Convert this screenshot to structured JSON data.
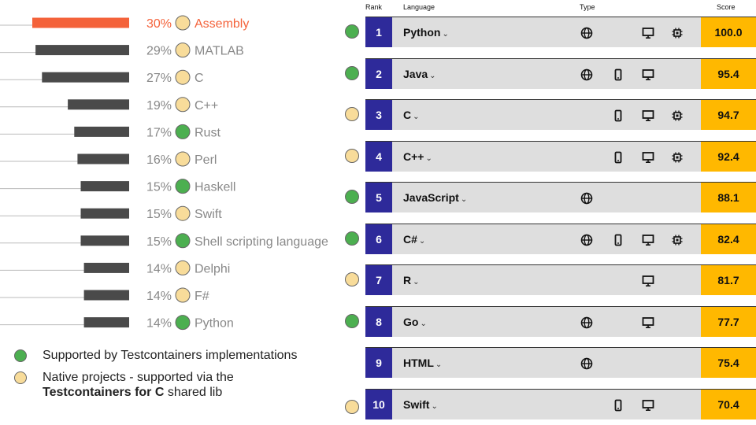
{
  "colors": {
    "green": "#4caf50",
    "yellow": "#f8dc9a",
    "bar_highlight": "#f4623a",
    "bar_default": "#4a4a4a",
    "label_highlight": "#f4623a",
    "label_default": "#888888",
    "rank_bg": "#2e2a9a",
    "score_bg": "#ffb800",
    "row_bg": "#dedede"
  },
  "chart_data": [
    {
      "type": "bar",
      "orientation": "horizontal",
      "unit": "%",
      "categories": [
        "Assembly",
        "MATLAB",
        "C",
        "C++",
        "Rust",
        "Perl",
        "Haskell",
        "Swift",
        "Shell scripting language",
        "Delphi",
        "F#",
        "Python"
      ],
      "values": [
        30,
        29,
        27,
        19,
        17,
        16,
        15,
        15,
        15,
        14,
        14,
        14
      ],
      "support": [
        "native",
        "native",
        "native",
        "native",
        "supported",
        "native",
        "supported",
        "native",
        "supported",
        "native",
        "native",
        "supported"
      ],
      "highlight_index": 0,
      "xlim": [
        0,
        52
      ]
    },
    {
      "type": "table",
      "headers": {
        "rank": "Rank",
        "language": "Language",
        "type": "Type",
        "score": "Score"
      },
      "rows": [
        {
          "rank": "1",
          "language": "Python",
          "support": "supported",
          "web": true,
          "mobile": false,
          "desktop": true,
          "embedded": true,
          "score": "100.0"
        },
        {
          "rank": "2",
          "language": "Java",
          "support": "supported",
          "web": true,
          "mobile": true,
          "desktop": true,
          "embedded": false,
          "score": "95.4"
        },
        {
          "rank": "3",
          "language": "C",
          "support": "native",
          "web": false,
          "mobile": true,
          "desktop": true,
          "embedded": true,
          "score": "94.7"
        },
        {
          "rank": "4",
          "language": "C++",
          "support": "native",
          "web": false,
          "mobile": true,
          "desktop": true,
          "embedded": true,
          "score": "92.4"
        },
        {
          "rank": "5",
          "language": "JavaScript",
          "support": "supported",
          "web": true,
          "mobile": false,
          "desktop": false,
          "embedded": false,
          "score": "88.1"
        },
        {
          "rank": "6",
          "language": "C#",
          "support": "supported",
          "web": true,
          "mobile": true,
          "desktop": true,
          "embedded": true,
          "score": "82.4"
        },
        {
          "rank": "7",
          "language": "R",
          "support": "native",
          "web": false,
          "mobile": false,
          "desktop": true,
          "embedded": false,
          "score": "81.7"
        },
        {
          "rank": "8",
          "language": "Go",
          "support": "supported",
          "web": true,
          "mobile": false,
          "desktop": true,
          "embedded": false,
          "score": "77.7"
        },
        {
          "rank": "9",
          "language": "HTML",
          "support": "none",
          "web": true,
          "mobile": false,
          "desktop": false,
          "embedded": false,
          "score": "75.4"
        },
        {
          "rank": "10",
          "language": "Swift",
          "support": "native",
          "web": false,
          "mobile": true,
          "desktop": true,
          "embedded": false,
          "score": "70.4"
        }
      ]
    }
  ],
  "legend": {
    "supported": "Supported by Testcontainers implementations",
    "native_line1": "Native projects - supported via the",
    "native_bold": "Testcontainers for C",
    "native_rest": " shared lib"
  },
  "icons": {
    "web": "globe-icon",
    "mobile": "phone-icon",
    "desktop": "monitor-icon",
    "embedded": "chip-icon",
    "chevron": "chevron-down-icon"
  }
}
